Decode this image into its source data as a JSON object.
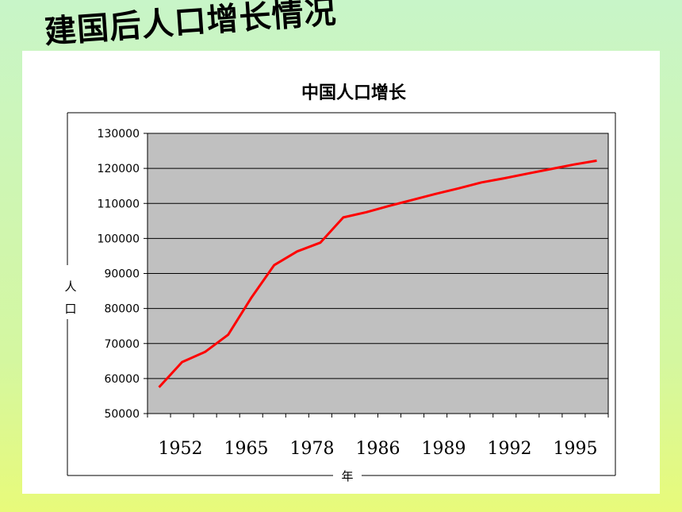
{
  "slide": {
    "title": "建国后人口增长情况"
  },
  "chart_data": {
    "type": "line",
    "title": "中国人口增长",
    "ylabel": "人口",
    "xlabel": "年",
    "ylim": [
      50000,
      130000
    ],
    "yticks": [
      130000,
      120000,
      110000,
      100000,
      90000,
      80000,
      70000,
      60000,
      50000
    ],
    "xtick_labels": [
      "1952",
      "1965",
      "1978",
      "1986",
      "1989",
      "1992",
      "1995"
    ],
    "grid": true,
    "colors": {
      "line": "#ff0000",
      "plot_bg": "#c0c0c0",
      "gridline": "#000000"
    },
    "series": [
      {
        "values": [
          57500,
          64700,
          67600,
          72500,
          83000,
          92400,
          96300,
          98800,
          106000,
          107500,
          109300,
          111000,
          112700,
          114300,
          116000,
          117200,
          118500,
          119800,
          121100,
          122200
        ]
      }
    ]
  }
}
